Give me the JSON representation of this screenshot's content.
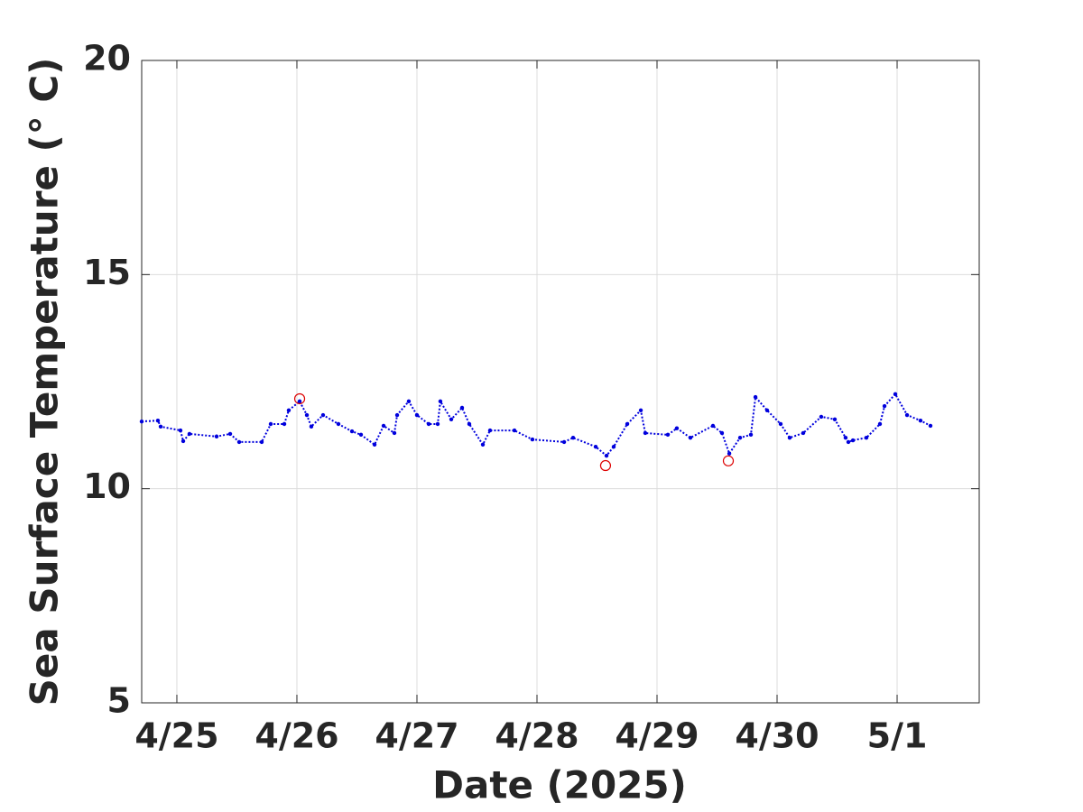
{
  "chart_data": {
    "type": "scatter",
    "xlabel": "Date (2025)",
    "ylabel": "Sea Surface Temperature (° C)",
    "x": [
      -0.293,
      -0.158,
      -0.135,
      0.03,
      0.053,
      0.105,
      0.331,
      0.444,
      0.519,
      0.707,
      0.782,
      0.895,
      0.932,
      1.023,
      1.083,
      1.12,
      1.218,
      1.346,
      1.459,
      1.534,
      1.647,
      1.722,
      1.812,
      1.835,
      1.932,
      2.0,
      2.098,
      2.173,
      2.195,
      2.286,
      2.376,
      2.436,
      2.549,
      2.609,
      2.812,
      2.962,
      3.226,
      3.301,
      3.489,
      3.579,
      3.639,
      3.752,
      3.865,
      3.902,
      4.09,
      4.165,
      4.278,
      4.466,
      4.541,
      4.602,
      4.692,
      4.782,
      4.82,
      4.917,
      5.03,
      5.105,
      5.218,
      5.368,
      5.481,
      5.571,
      5.594,
      5.632,
      5.744,
      5.857,
      5.895,
      5.985,
      6.083,
      6.195,
      6.278
    ],
    "values": [
      11.57,
      11.59,
      11.45,
      11.36,
      11.11,
      11.28,
      11.22,
      11.28,
      11.09,
      11.09,
      11.51,
      11.51,
      11.83,
      12.04,
      11.72,
      11.45,
      11.72,
      11.51,
      11.34,
      11.26,
      11.03,
      11.47,
      11.3,
      11.72,
      12.04,
      11.72,
      11.51,
      11.51,
      12.04,
      11.62,
      11.89,
      11.51,
      11.03,
      11.36,
      11.36,
      11.15,
      11.09,
      11.19,
      10.98,
      10.77,
      10.98,
      11.51,
      11.83,
      11.3,
      11.26,
      11.41,
      11.19,
      11.47,
      11.3,
      10.82,
      11.19,
      11.26,
      12.14,
      11.83,
      11.51,
      11.19,
      11.3,
      11.68,
      11.62,
      11.19,
      11.09,
      11.13,
      11.19,
      11.51,
      11.93,
      12.21,
      11.72,
      11.59,
      11.47
    ],
    "color": "#0000dd",
    "highlights": {
      "x": [
        1.023,
        3.571,
        4.594
      ],
      "values": [
        12.1,
        10.54,
        10.65
      ],
      "color": "#dd0000"
    },
    "xlim": [
      -0.293,
      6.684
    ],
    "ylim": [
      5,
      20
    ],
    "xticks": [
      {
        "value": 0,
        "label": "4/25"
      },
      {
        "value": 1,
        "label": "4/26"
      },
      {
        "value": 2,
        "label": "4/27"
      },
      {
        "value": 3,
        "label": "4/28"
      },
      {
        "value": 4,
        "label": "4/29"
      },
      {
        "value": 5,
        "label": "4/30"
      },
      {
        "value": 6,
        "label": "5/1"
      }
    ],
    "yticks": [
      5,
      10,
      15,
      20
    ],
    "grid": true
  }
}
